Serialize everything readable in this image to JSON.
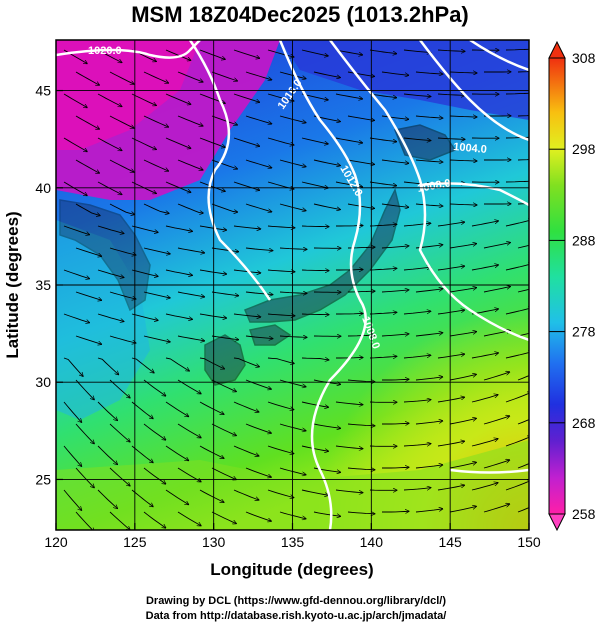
{
  "title": "MSM 18Z04Dec2025 (1013.2hPa)",
  "xaxis": {
    "label": "Longitude (degrees)",
    "range": [
      120,
      150
    ],
    "ticks": [
      "120",
      "125",
      "130",
      "135",
      "140",
      "145",
      "150"
    ]
  },
  "yaxis": {
    "label": "Latitude  (degrees)",
    "range": [
      22.4,
      47.6
    ],
    "ticks": [
      "25",
      "30",
      "35",
      "40",
      "45"
    ]
  },
  "colorbar": {
    "range": [
      258,
      308
    ],
    "ticks": [
      "258",
      "268",
      "278",
      "288",
      "298",
      "308"
    ]
  },
  "contour_labels": [
    "1020.0",
    "1016.0",
    "1012.0",
    "1008.0",
    "1004.0",
    "1008.0"
  ],
  "credits": [
    "Drawing by DCL (https://www.gfd-dennou.org/library/dcl/)",
    "Data from http://database.rish.kyoto-u.ac.jp/arch/jmadata/"
  ],
  "colors": {
    "cold": "#d010c0",
    "cool": "#1a3ee0",
    "mid": "#20e0d0",
    "warm": "#40e020",
    "hot": "#f8a000",
    "contour": "#ffffff",
    "land": "#000000"
  }
}
